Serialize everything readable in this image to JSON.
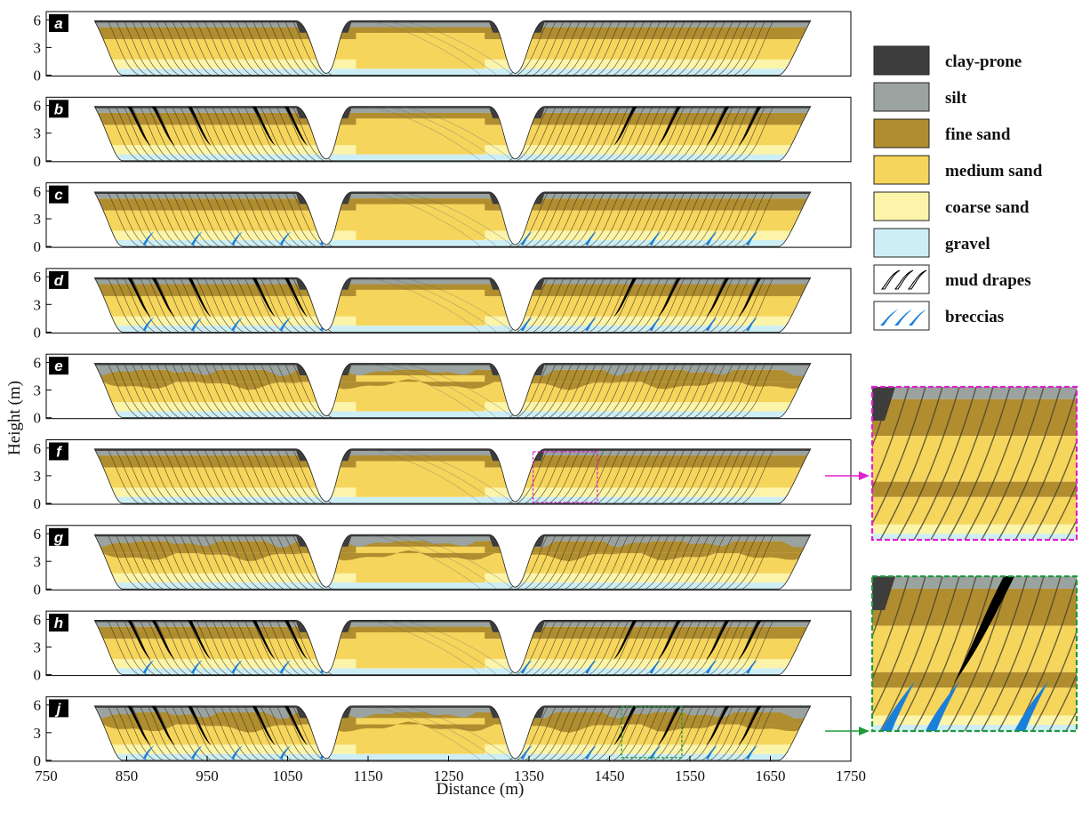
{
  "figure": {
    "xlabel": "Distance (m)",
    "ylabel": "Height (m)",
    "x_ticks": [
      "750",
      "850",
      "950",
      "1050",
      "1150",
      "1250",
      "1350",
      "1450",
      "1550",
      "1650",
      "1750"
    ],
    "y_ticks": [
      "0",
      "3",
      "6"
    ]
  },
  "colors": {
    "clay_prone": "#3d3d3d",
    "silt": "#9aa3a0",
    "fine_sand": "#b08e2f",
    "medium_sand": "#f6d55c",
    "coarse_sand": "#fbf4a9",
    "gravel": "#cdeef5",
    "mud_drapes": "#000000",
    "breccias": "#1a7fd8",
    "inset_top_border": "#e020d0",
    "inset_bottom_border": "#1f9a3a"
  },
  "panels": [
    {
      "letter": "a",
      "mud": "none",
      "breccia": false,
      "wavy": false
    },
    {
      "letter": "b",
      "mud": "heavy",
      "breccia": false,
      "wavy": false
    },
    {
      "letter": "c",
      "mud": "none",
      "breccia": true,
      "wavy": false
    },
    {
      "letter": "d",
      "mud": "heavy",
      "breccia": true,
      "wavy": false
    },
    {
      "letter": "e",
      "mud": "none",
      "breccia": false,
      "wavy": true
    },
    {
      "letter": "f",
      "mud": "none",
      "breccia": false,
      "wavy": false
    },
    {
      "letter": "g",
      "mud": "none",
      "breccia": false,
      "wavy": true
    },
    {
      "letter": "h",
      "mud": "heavy",
      "breccia": true,
      "wavy": false
    },
    {
      "letter": "j",
      "mud": "heavy",
      "breccia": true,
      "wavy": true
    }
  ],
  "legend": [
    {
      "key": "clay_prone",
      "label": "clay-prone",
      "icon": "solid-swatch"
    },
    {
      "key": "silt",
      "label": "silt",
      "icon": "solid-swatch"
    },
    {
      "key": "fine_sand",
      "label": "fine sand",
      "icon": "solid-swatch"
    },
    {
      "key": "medium_sand",
      "label": "medium sand",
      "icon": "solid-swatch"
    },
    {
      "key": "coarse_sand",
      "label": "coarse sand",
      "icon": "solid-swatch"
    },
    {
      "key": "gravel",
      "label": "gravel",
      "icon": "solid-swatch"
    },
    {
      "key": "mud_drapes",
      "label": "mud drapes",
      "icon": "mud-drape-symbol"
    },
    {
      "key": "breccias",
      "label": "breccias",
      "icon": "breccia-symbol"
    }
  ],
  "insets": [
    {
      "name": "zoom-inset-f",
      "source_panel": "f",
      "border": "inset_top_border",
      "content": "plain"
    },
    {
      "name": "zoom-inset-j",
      "source_panel": "j",
      "border": "inset_bottom_border",
      "content": "mud-and-breccia"
    }
  ]
}
